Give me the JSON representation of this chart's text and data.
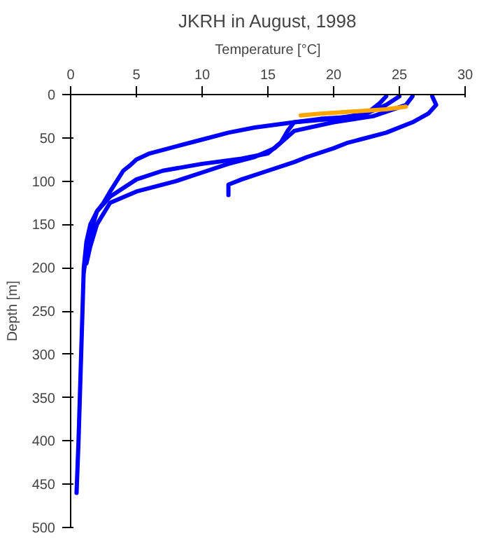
{
  "chart_data": {
    "type": "line",
    "title": "JKRH in August, 1998",
    "xlabel": "Temperature [°C]",
    "ylabel": "Depth [m]",
    "xlim": [
      0,
      30
    ],
    "xticks": [
      0,
      5,
      10,
      15,
      20,
      25,
      30
    ],
    "ylim": [
      500,
      0
    ],
    "yticks": [
      0,
      50,
      100,
      150,
      200,
      250,
      300,
      350,
      400,
      450,
      500
    ],
    "grid": false,
    "marker": "none",
    "line_style": "solid",
    "series": [
      {
        "color": "#0000ff",
        "x": [
          24,
          23.5,
          22.5,
          20,
          17,
          14,
          12,
          10,
          8,
          6,
          5,
          4.5,
          4,
          3.5,
          3,
          2.5,
          2,
          1.5,
          1.2,
          1,
          0.9,
          0.8,
          0.7,
          0.6,
          0.5,
          0.45
        ],
        "values": [
          2,
          10,
          22,
          28,
          32,
          38,
          44,
          52,
          60,
          68,
          75,
          82,
          88,
          100,
          112,
          125,
          135,
          150,
          170,
          200,
          250,
          300,
          350,
          400,
          440,
          460
        ]
      },
      {
        "color": "#0000ff",
        "x": [
          27.5,
          27.8,
          27.2,
          26,
          24,
          22,
          21,
          20,
          18,
          17,
          15,
          13,
          12,
          12
        ],
        "values": [
          2,
          12,
          22,
          32,
          44,
          52,
          56,
          62,
          72,
          78,
          88,
          98,
          104,
          116
        ]
      },
      {
        "color": "#0000ff",
        "x": [
          25,
          24,
          22,
          19,
          17,
          16.5,
          16,
          15,
          13,
          10,
          7,
          5,
          3,
          2,
          1.5,
          1.2,
          1
        ],
        "values": [
          2,
          12,
          25,
          28,
          32,
          42,
          55,
          68,
          74,
          80,
          88,
          98,
          118,
          135,
          160,
          185,
          205
        ]
      },
      {
        "color": "#0000ff",
        "x": [
          26,
          25.5,
          23,
          20,
          17,
          15.5,
          14,
          12,
          10,
          8,
          5,
          3,
          2,
          1.5,
          1.2
        ],
        "values": [
          2,
          12,
          25,
          32,
          42,
          62,
          72,
          80,
          90,
          100,
          112,
          125,
          150,
          175,
          195
        ]
      },
      {
        "color": "#ffa500",
        "x": [
          17.5,
          19,
          21,
          23,
          24,
          25.5
        ],
        "values": [
          24,
          22,
          20,
          18,
          17,
          14
        ]
      }
    ]
  }
}
